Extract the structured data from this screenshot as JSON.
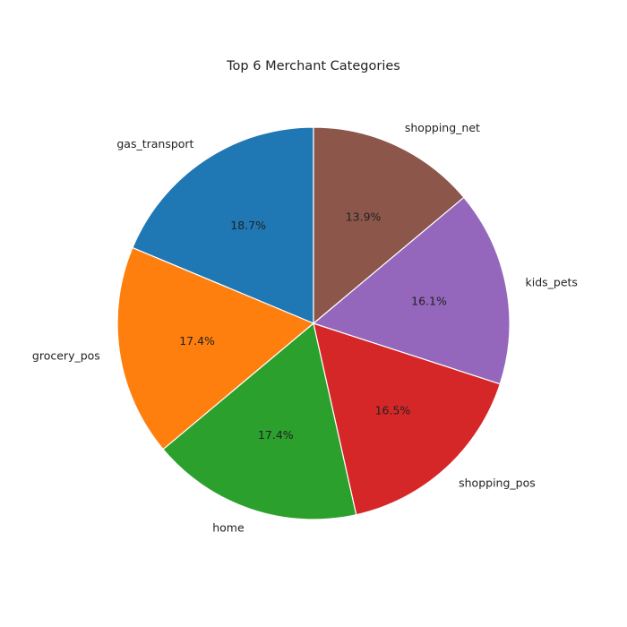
{
  "chart_data": {
    "type": "pie",
    "title": "Top 6 Merchant Categories",
    "start_angle_deg": 90,
    "direction": "counterclockwise",
    "slices": [
      {
        "label": "gas_transport",
        "value": 18.7,
        "pct_label": "18.7%",
        "color": "#1f77b4"
      },
      {
        "label": "grocery_pos",
        "value": 17.4,
        "pct_label": "17.4%",
        "color": "#ff7f0e"
      },
      {
        "label": "home",
        "value": 17.4,
        "pct_label": "17.4%",
        "color": "#2ca02c"
      },
      {
        "label": "shopping_pos",
        "value": 16.5,
        "pct_label": "16.5%",
        "color": "#d62728"
      },
      {
        "label": "kids_pets",
        "value": 16.1,
        "pct_label": "16.1%",
        "color": "#9467bd"
      },
      {
        "label": "shopping_net",
        "value": 13.9,
        "pct_label": "13.9%",
        "color": "#8c564b"
      }
    ]
  }
}
